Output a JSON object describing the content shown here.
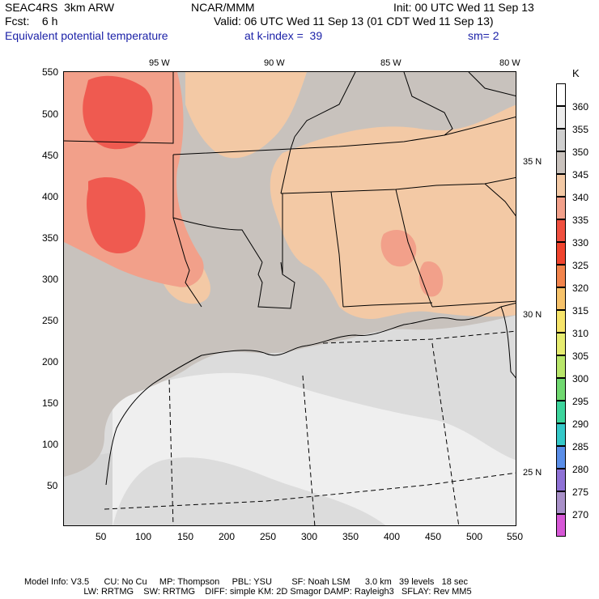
{
  "header": {
    "model": "SEAC4RS  3km ARW",
    "center": "NCAR/MMM",
    "init": "Init: 00 UTC Wed 11 Sep 13",
    "fcst": "Fcst:    6 h",
    "valid": "Valid: 06 UTC Wed 11 Sep 13 (01 CDT Wed 11 Sep 13)",
    "field": "Equivalent potential temperature",
    "level": "at k-index =  39",
    "smoothing": "sm= 2"
  },
  "map": {
    "x_ticks": [
      "50",
      "100",
      "150",
      "200",
      "250",
      "300",
      "350",
      "400",
      "450",
      "500",
      "550"
    ],
    "y_ticks": [
      "550",
      "500",
      "450",
      "400",
      "350",
      "300",
      "250",
      "200",
      "150",
      "100",
      "50"
    ],
    "lon_labels": [
      "95 W",
      "90 W",
      "85 W",
      "80 W"
    ],
    "lat_labels": [
      "35 N",
      "30 N",
      "25 N"
    ],
    "colors": {
      "ocean_light": "#f2f2f2",
      "ocean_mid": "#d9d9d9",
      "land_gray": "#c8c2bd",
      "tan": "#f3c9a5",
      "salmon": "#f2a08a",
      "red": "#ef5a50",
      "border": "#000000"
    }
  },
  "colorbar": {
    "unit": "K",
    "levels": [
      {
        "label": "360",
        "color": "#ffffff"
      },
      {
        "label": "355",
        "color": "#ececec"
      },
      {
        "label": "350",
        "color": "#cfcfcf"
      },
      {
        "label": "345",
        "color": "#c9c2bd"
      },
      {
        "label": "340",
        "color": "#f3c9a5"
      },
      {
        "label": "335",
        "color": "#f2a08a"
      },
      {
        "label": "330",
        "color": "#f05040"
      },
      {
        "label": "325",
        "color": "#f0442e"
      },
      {
        "label": "320",
        "color": "#f2844c"
      },
      {
        "label": "315",
        "color": "#f6c26a"
      },
      {
        "label": "310",
        "color": "#f6e46a"
      },
      {
        "label": "305",
        "color": "#e6ec70"
      },
      {
        "label": "300",
        "color": "#b8e66a"
      },
      {
        "label": "295",
        "color": "#70d870"
      },
      {
        "label": "290",
        "color": "#3dd49c"
      },
      {
        "label": "285",
        "color": "#35c8c8"
      },
      {
        "label": "280",
        "color": "#5a8ee8"
      },
      {
        "label": "275",
        "color": "#8f72d6"
      },
      {
        "label": "270",
        "color": "#a890c8"
      },
      {
        "label": "",
        "color": "#d658d6"
      }
    ]
  },
  "footer": {
    "line1": "Model Info: V3.5      CU: No Cu     MP: Thompson     PBL: YSU        SF: Noah LSM      3.0 km   39 levels   18 sec",
    "line2": "                        LW: RRTMG    SW: RRTMG    DIFF: simple KM: 2D Smagor DAMP: Rayleigh3   SFLAY: Rev MM5"
  }
}
